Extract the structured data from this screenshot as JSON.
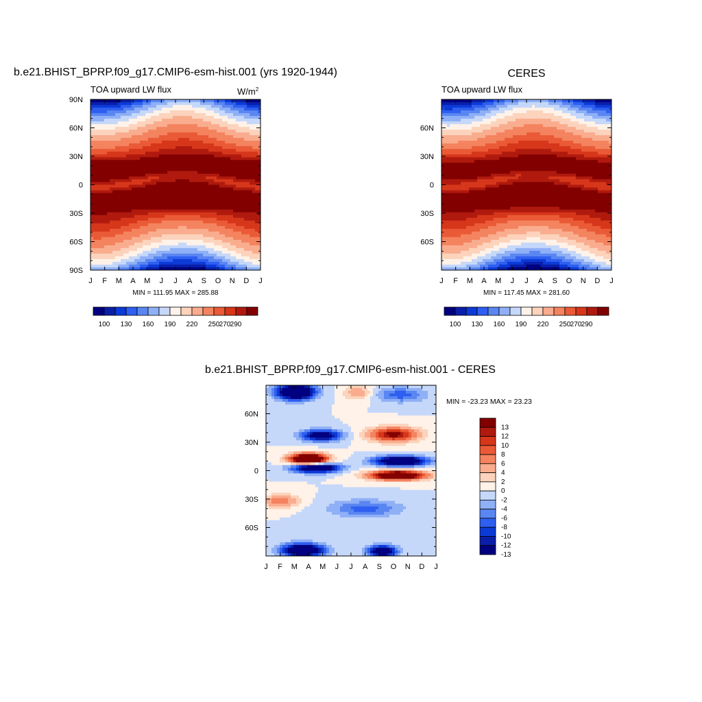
{
  "figure": {
    "panel1_title": "b.e21.BHIST_BPRP.f09_g17.CMIP6-esm-hist.001 (yrs 1920-1944)",
    "panel2_title": "CERES",
    "panel3_title": "b.e21.BHIST_BPRP.f09_g17.CMIP6-esm-hist.001 - CERES"
  },
  "chart_data": [
    {
      "type": "heatmap",
      "title": "b.e21.BHIST_BPRP.f09_g17.CMIP6-esm-hist.001 (yrs 1920-1944)",
      "subtitle": "TOA upward LW flux",
      "units_prefix": "W/m",
      "units_exp": "2",
      "x_tick_labels": [
        "J",
        "F",
        "M",
        "A",
        "M",
        "J",
        "J",
        "A",
        "S",
        "O",
        "N",
        "D",
        "J"
      ],
      "y_tick_labels": [
        "90N",
        "60N",
        "30N",
        "0",
        "30S",
        "60S",
        "90S"
      ],
      "xlim": [
        0,
        12
      ],
      "ylim": [
        -90,
        90
      ],
      "stats": "MIN = 111.95  MAX = 285.88",
      "min": 111.95,
      "max": 285.88,
      "colorbar_labels": [
        "100",
        "130",
        "160",
        "190",
        "220",
        "250",
        "270",
        "290"
      ]
    },
    {
      "type": "heatmap",
      "title": "CERES",
      "subtitle": "TOA upward LW flux",
      "x_tick_labels": [
        "J",
        "F",
        "M",
        "A",
        "M",
        "J",
        "J",
        "A",
        "S",
        "O",
        "N",
        "D",
        "J"
      ],
      "y_tick_labels": [
        "60N",
        "30N",
        "0",
        "30S",
        "60S"
      ],
      "xlim": [
        0,
        12
      ],
      "ylim": [
        -90,
        90
      ],
      "stats": "MIN = 117.45  MAX = 281.60",
      "min": 117.45,
      "max": 281.6,
      "colorbar_labels": [
        "100",
        "130",
        "160",
        "190",
        "220",
        "250",
        "270",
        "290"
      ]
    },
    {
      "type": "heatmap",
      "title": "b.e21.BHIST_BPRP.f09_g17.CMIP6-esm-hist.001 - CERES",
      "x_tick_labels": [
        "J",
        "F",
        "M",
        "A",
        "M",
        "J",
        "J",
        "A",
        "S",
        "O",
        "N",
        "D",
        "J"
      ],
      "y_tick_labels": [
        "60N",
        "30N",
        "0",
        "30S",
        "60S"
      ],
      "xlim": [
        0,
        12
      ],
      "ylim": [
        -90,
        90
      ],
      "stats": "MIN = -23.23  MAX =  23.23",
      "min": -23.23,
      "max": 23.23,
      "colorbar_labels": [
        "13",
        "12",
        "10",
        "8",
        "6",
        "4",
        "2",
        "0",
        "-2",
        "-4",
        "-6",
        "-8",
        "-10",
        "-12",
        "-13"
      ]
    }
  ],
  "colors": {
    "abs_scale": [
      "#000080",
      "#0a1ea8",
      "#0c3ad6",
      "#2f5ff0",
      "#5a86f2",
      "#8fb0f6",
      "#c6d8fa",
      "#fff2e8",
      "#fcd3bc",
      "#f9ad8e",
      "#f4835f",
      "#ea5a36",
      "#d6361a",
      "#b01a0e",
      "#820000"
    ],
    "diff_scale": [
      "#820000",
      "#b01a0e",
      "#d6361a",
      "#ea5a36",
      "#f4835f",
      "#f9ad8e",
      "#fcd3bc",
      "#fff2e8",
      "#c6d8fa",
      "#8fb0f6",
      "#5a86f2",
      "#2f5ff0",
      "#0c3ad6",
      "#0a1ea8",
      "#000080"
    ]
  }
}
